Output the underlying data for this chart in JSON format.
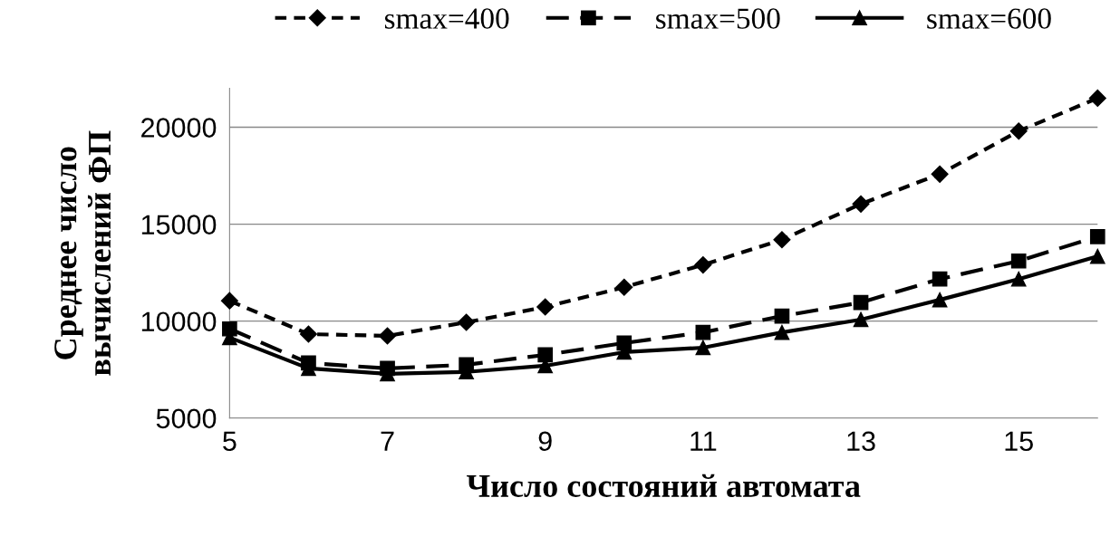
{
  "chart_data": {
    "type": "line",
    "xlabel": "Число состояний автомата",
    "ylabel": "Среднее число\nвычислений ФП",
    "x": [
      5,
      6,
      7,
      8,
      9,
      10,
      11,
      12,
      13,
      14,
      15,
      16
    ],
    "series": [
      {
        "name": "smax=400",
        "color": "#000000",
        "marker": "diamond",
        "line_style": "dotted",
        "values": [
          11050,
          9330,
          9240,
          9940,
          10730,
          11750,
          12900,
          14200,
          16040,
          17580,
          19800,
          21500
        ]
      },
      {
        "name": "smax=500",
        "color": "#000000",
        "marker": "square",
        "line_style": "dashed",
        "values": [
          9600,
          7840,
          7560,
          7750,
          8260,
          8870,
          9420,
          10260,
          10960,
          12170,
          13100,
          14360
        ]
      },
      {
        "name": "smax=600",
        "color": "#000000",
        "marker": "triangle",
        "line_style": "solid",
        "values": [
          9150,
          7560,
          7280,
          7380,
          7700,
          8400,
          8630,
          9420,
          10080,
          11100,
          12170,
          13340
        ]
      }
    ],
    "xlim": [
      5,
      16
    ],
    "xticks": [
      5,
      7,
      9,
      11,
      13,
      15
    ],
    "ylim": [
      5000,
      22000
    ],
    "yticks": [
      5000,
      10000,
      15000,
      20000
    ],
    "grid": "y",
    "legend": "top"
  }
}
